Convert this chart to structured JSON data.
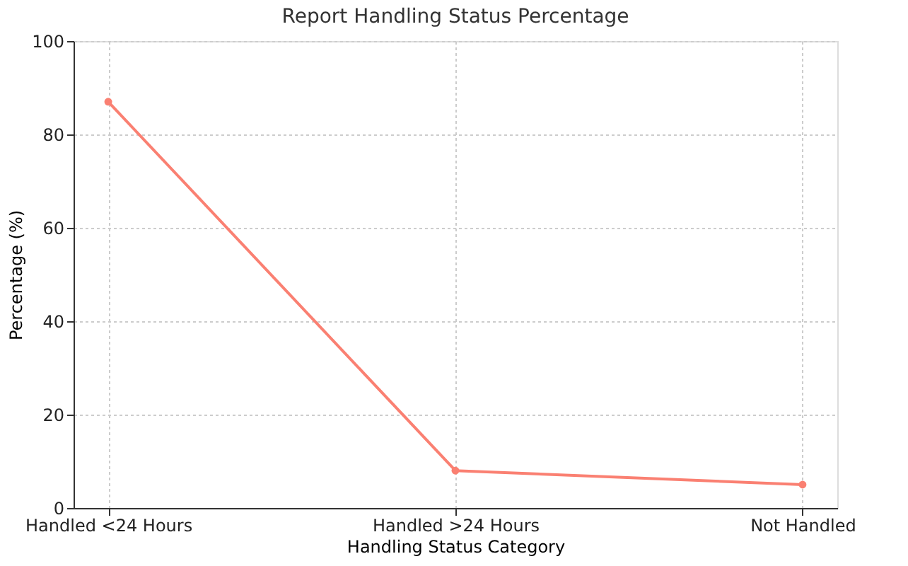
{
  "chart_data": {
    "type": "line",
    "title": "Report Handling Status Percentage",
    "xlabel": "Handling Status Category",
    "ylabel": "Percentage (%)",
    "categories": [
      "Handled <24 Hours",
      "Handled >24 Hours",
      "Not Handled"
    ],
    "series": [
      {
        "color": "#fa8072",
        "values": [
          87,
          8,
          5
        ]
      }
    ],
    "ylim": [
      0,
      100
    ],
    "yticks": [
      0,
      20,
      40,
      60,
      80,
      100
    ],
    "grid": true,
    "marker": "circle",
    "line_style": "solid"
  }
}
